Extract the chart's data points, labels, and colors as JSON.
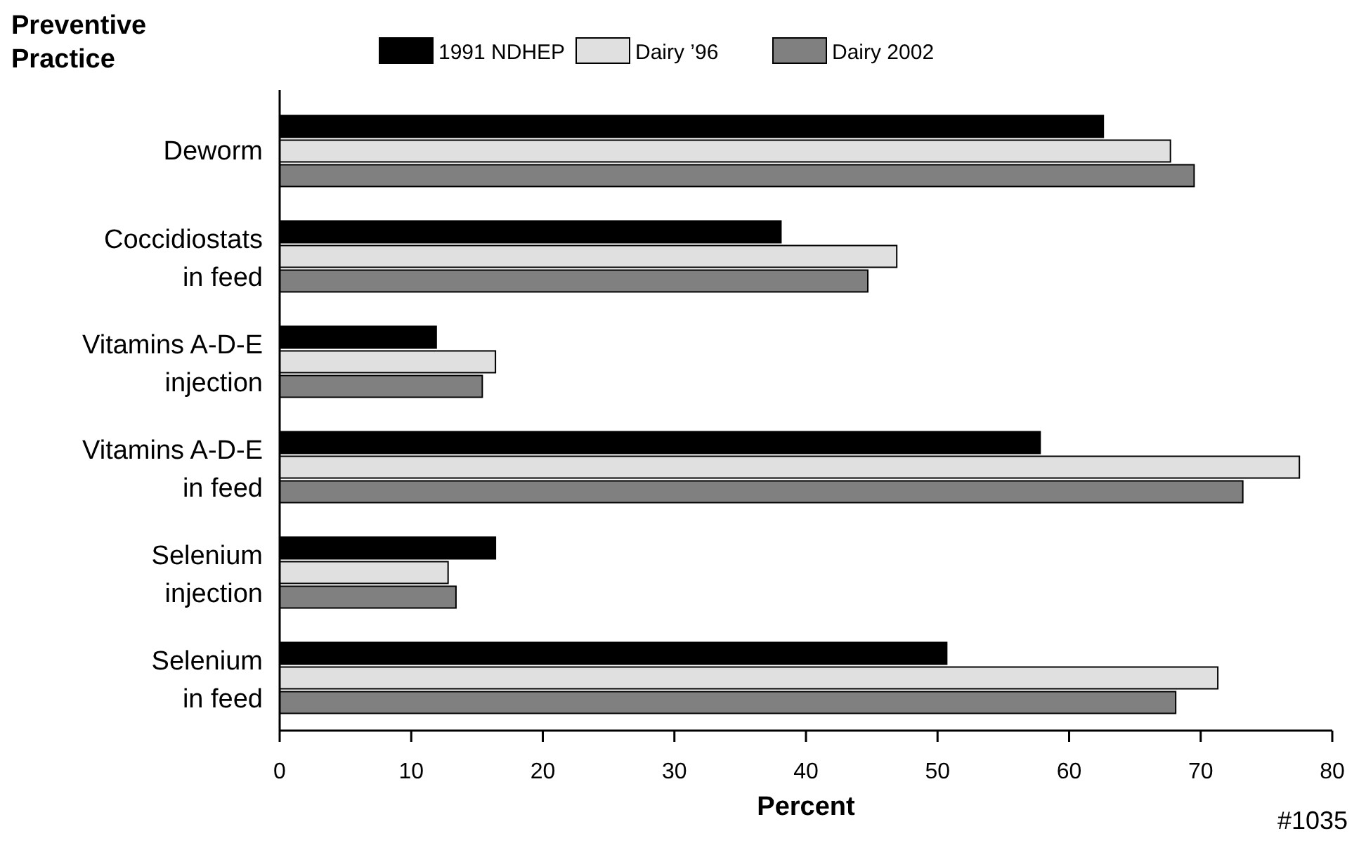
{
  "chart_data": {
    "type": "bar",
    "orientation": "horizontal",
    "ylabel": "Preventive\nPractice",
    "xlabel": "Percent",
    "categories": [
      "Deworm",
      "Coccidiostats\nin feed",
      "Vitamins A-D-E\ninjection",
      "Vitamins A-D-E\nin feed",
      "Selenium\ninjection",
      "Selenium\nin feed"
    ],
    "series": [
      {
        "name": "1991 NDHEP",
        "color": "#000000",
        "values": [
          62.6,
          38.1,
          11.9,
          57.8,
          16.4,
          50.7
        ]
      },
      {
        "name": "Dairy ’96",
        "color": "#e0e0e0",
        "values": [
          67.7,
          46.9,
          16.4,
          77.5,
          12.8,
          71.3
        ]
      },
      {
        "name": "Dairy 2002",
        "color": "#808080",
        "values": [
          69.5,
          44.7,
          15.4,
          73.2,
          13.4,
          68.1
        ]
      }
    ],
    "xlim": [
      0,
      80
    ],
    "xticks": [
      0,
      10,
      20,
      30,
      40,
      50,
      60,
      70,
      80
    ],
    "legend": "top",
    "grid": false,
    "annotations": [
      "#1035"
    ]
  }
}
